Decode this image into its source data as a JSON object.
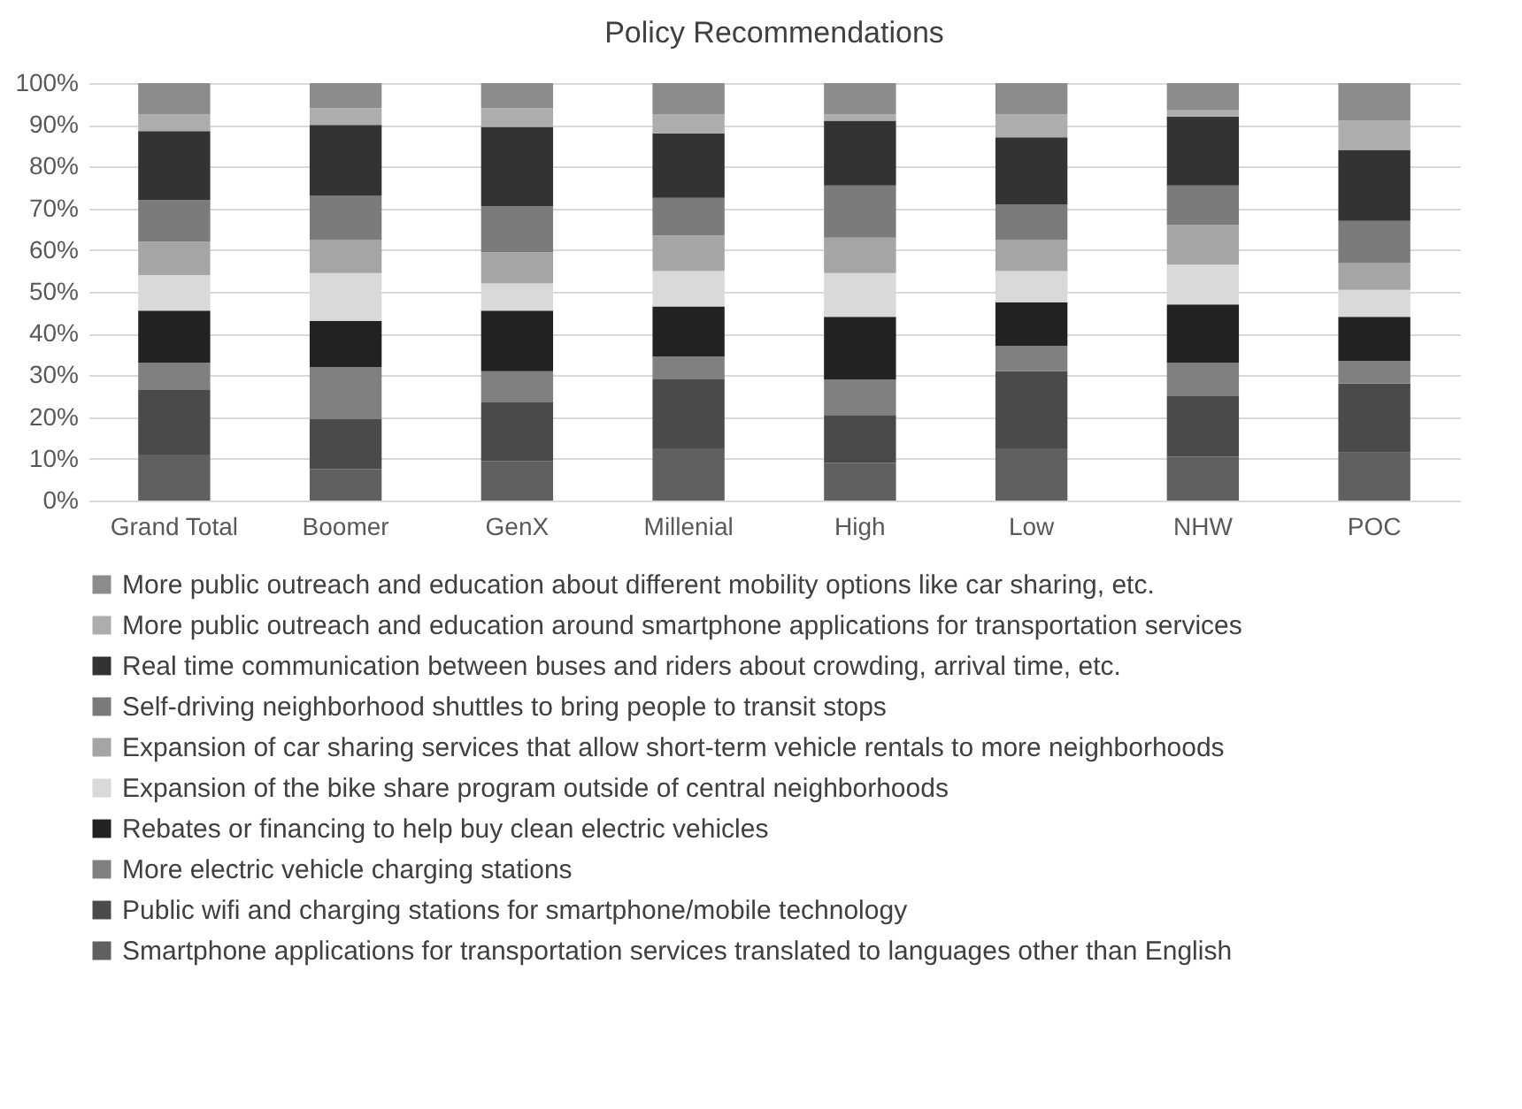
{
  "chart_data": {
    "type": "bar",
    "title": "Policy Recommendations",
    "stacked": true,
    "legend": "bottom",
    "grid": "y",
    "categories": [
      "Grand Total",
      "Boomer",
      "GenX",
      "Millenial",
      "High",
      "Low",
      "NHW",
      "POC"
    ],
    "ylim": [
      0,
      100
    ],
    "yticks": [
      {
        "value": 0,
        "label": "0%"
      },
      {
        "value": 10,
        "label": "10%"
      },
      {
        "value": 20,
        "label": "20%"
      },
      {
        "value": 30,
        "label": "30%"
      },
      {
        "value": 40,
        "label": "40%"
      },
      {
        "value": 50,
        "label": "50%"
      },
      {
        "value": 60,
        "label": "60%"
      },
      {
        "value": 70,
        "label": "70%"
      },
      {
        "value": 80,
        "label": "80%"
      },
      {
        "value": 90,
        "label": "90%"
      },
      {
        "value": 100,
        "label": "100%"
      }
    ],
    "series": [
      {
        "name": "Smartphone applications for transportation services translated to languages other than English",
        "color": "#606060",
        "values": [
          11,
          7.5,
          9.5,
          12.5,
          9,
          12.5,
          10.5,
          11.5
        ]
      },
      {
        "name": "Public wifi and charging stations for smartphone/mobile technology",
        "color": "#4a4a4a",
        "values": [
          15.5,
          12,
          14,
          16.5,
          11.5,
          18.5,
          14.5,
          16.5
        ]
      },
      {
        "name": "More electric vehicle charging stations",
        "color": "#808080",
        "values": [
          6.5,
          12.5,
          7.5,
          5.5,
          8.5,
          6,
          8,
          5.5
        ]
      },
      {
        "name": "Rebates or financing to help buy clean electric vehicles",
        "color": "#222222",
        "values": [
          12.5,
          11,
          14.5,
          12,
          15,
          10.5,
          14,
          10.5
        ]
      },
      {
        "name": "Expansion of the bike share program outside of central neighborhoods",
        "color": "#d9d9d9",
        "values": [
          8.5,
          11.5,
          6.5,
          8.5,
          10.5,
          7.5,
          9.5,
          6.5
        ]
      },
      {
        "name": "Expansion of car sharing services that allow short-term vehicle rentals to more neighborhoods",
        "color": "#a5a5a5",
        "values": [
          8,
          8,
          7.5,
          8.5,
          8.5,
          7.5,
          9.5,
          6.5
        ]
      },
      {
        "name": "Self-driving neighborhood shuttles to bring people to transit stops",
        "color": "#7b7b7b",
        "values": [
          10,
          10.5,
          11,
          9,
          12.5,
          8.5,
          9.5,
          10
        ]
      },
      {
        "name": "Real time communication between buses and riders about crowding, arrival time, etc.",
        "color": "#333333",
        "values": [
          16.5,
          17,
          19,
          15.5,
          15.5,
          16,
          16.5,
          17
        ]
      },
      {
        "name": "More public outreach and education around smartphone applications for transportation services",
        "color": "#adadad",
        "values": [
          4,
          4,
          4.5,
          4.5,
          1.5,
          5.5,
          1.5,
          7
        ]
      },
      {
        "name": "More public outreach and education about different mobility options like car sharing, etc.",
        "color": "#8c8c8c",
        "values": [
          7.5,
          6,
          6,
          7.5,
          7.5,
          7.5,
          6.5,
          9
        ]
      }
    ]
  }
}
